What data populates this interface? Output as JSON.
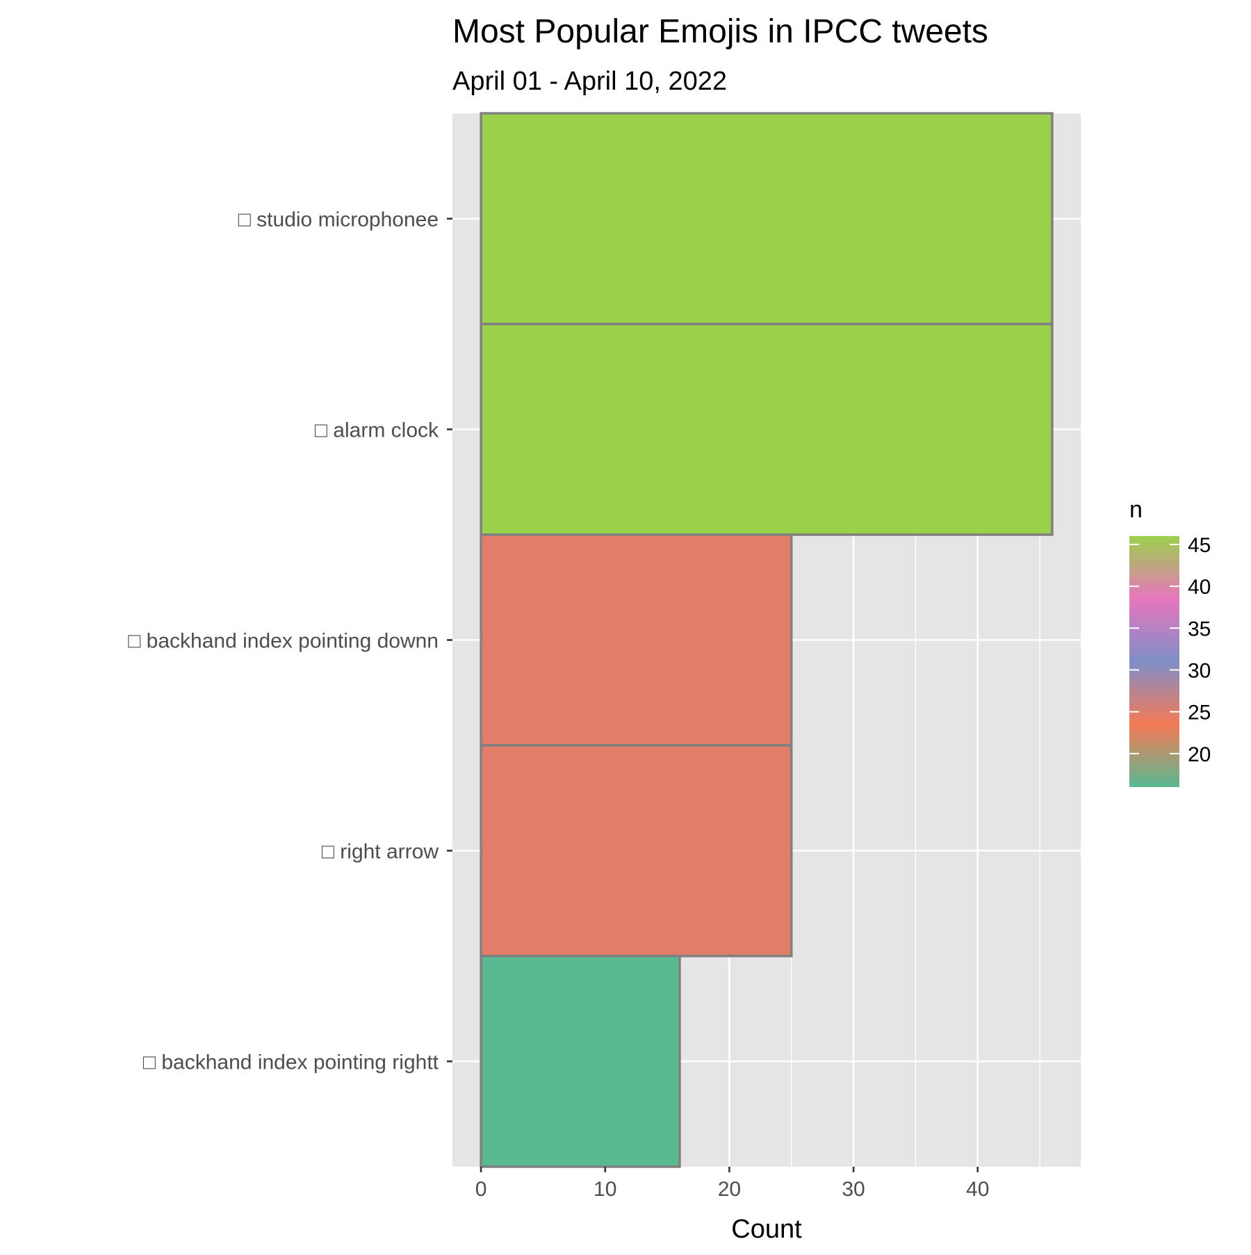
{
  "chart_data": {
    "type": "bar",
    "orientation": "horizontal",
    "title": "Most Popular Emojis in IPCC tweets",
    "subtitle": "April 01 - April 10, 2022",
    "xlabel": "Count",
    "ylabel": "",
    "xlim": [
      -2.3,
      48.3
    ],
    "x_ticks": [
      0,
      10,
      20,
      30,
      40
    ],
    "grid": true,
    "categories": [
      "□ studio microphonee",
      "□ alarm clock",
      "□ backhand index pointing downn",
      "□ right arrow",
      "□ backhand index pointing rightt"
    ],
    "values": [
      46,
      46,
      25,
      25,
      16
    ],
    "bar_colors": [
      "#9bd14a",
      "#9bd14a",
      "#e27d69",
      "#e27d69",
      "#59b991"
    ],
    "bar_outline_color": "#808080",
    "panel_background": "#e5e5e5",
    "legend": {
      "title": "n",
      "position": "right",
      "ticks": [
        45,
        40,
        35,
        30,
        25,
        20
      ],
      "range": [
        16,
        46
      ],
      "gradient_colors": [
        "#59b991",
        "#f47a55",
        "#7f8ec8",
        "#e776bd",
        "#9bd14a"
      ]
    }
  }
}
